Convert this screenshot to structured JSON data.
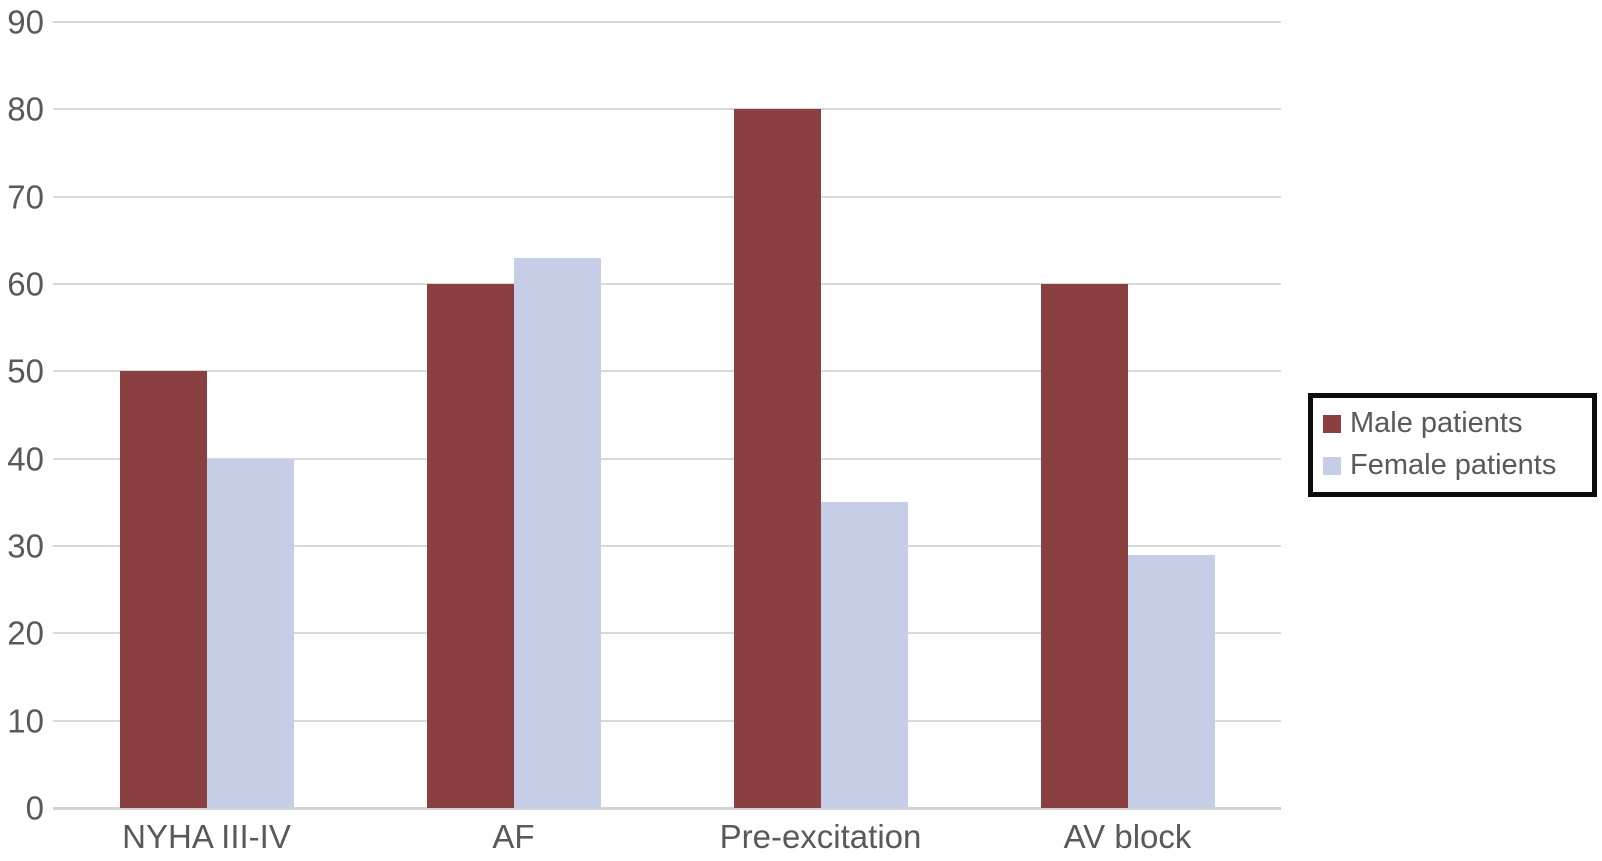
{
  "chart_data": {
    "type": "bar",
    "title": "",
    "xlabel": "",
    "ylabel": "",
    "categories": [
      "NYHA III-IV",
      "AF",
      "Pre-excitation",
      "AV block"
    ],
    "series": [
      {
        "name": "Male patients",
        "values": [
          50,
          60,
          80,
          60
        ],
        "color": "#8a3f41"
      },
      {
        "name": "Female patients",
        "values": [
          40,
          63,
          35,
          29
        ],
        "color": "#c6cde7"
      }
    ],
    "ylim": [
      0,
      90
    ],
    "ytick_step": 10,
    "yticks": [
      0,
      10,
      20,
      30,
      40,
      50,
      60,
      70,
      80,
      90
    ],
    "grid": "horizontal",
    "legend_position": "right",
    "legend_border": true
  },
  "colors": {
    "axis_text": "#595959",
    "gridline": "#d9d9d9",
    "axis_line": "#d2d2d2",
    "legend_border": "#0c0c0c",
    "background": "#ffffff"
  }
}
